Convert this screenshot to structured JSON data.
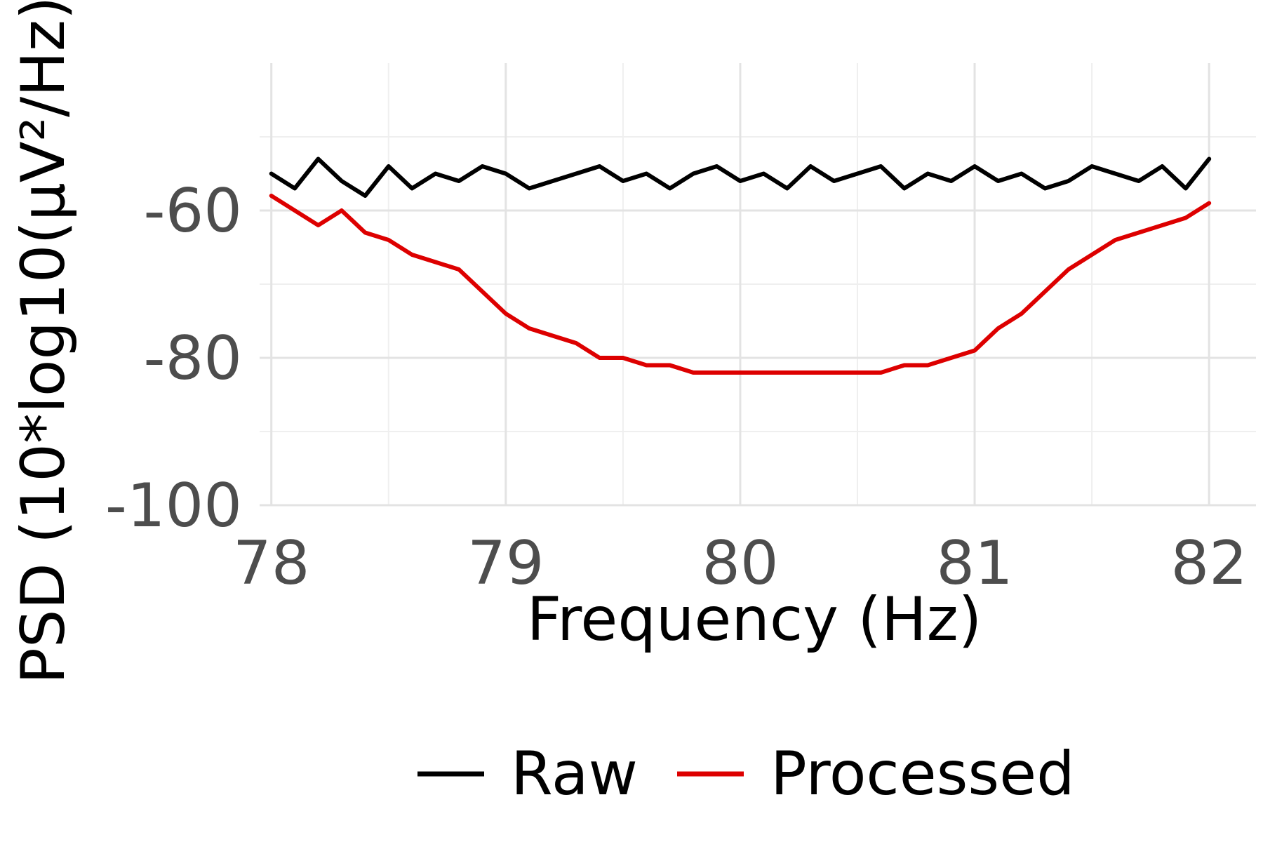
{
  "chart_data": {
    "type": "line",
    "title": "",
    "xlabel": "Frequency (Hz)",
    "ylabel": "PSD (10*log10(µV²/Hz))",
    "xlim": [
      77.95,
      82.2
    ],
    "ylim": [
      -100,
      -40
    ],
    "x_ticks": [
      "78",
      "79",
      "80",
      "81",
      "82"
    ],
    "y_ticks": [
      "-60",
      "-80",
      "-100"
    ],
    "grid": true,
    "legend_position": "bottom",
    "colors": {
      "Raw": "#000000",
      "Processed": "#dd0000"
    },
    "series": [
      {
        "name": "Raw",
        "x": [
          78.0,
          78.1,
          78.2,
          78.3,
          78.4,
          78.5,
          78.6,
          78.7,
          78.8,
          78.9,
          79.0,
          79.1,
          79.2,
          79.3,
          79.4,
          79.5,
          79.6,
          79.7,
          79.8,
          79.9,
          80.0,
          80.1,
          80.2,
          80.3,
          80.4,
          80.5,
          80.6,
          80.7,
          80.8,
          80.9,
          81.0,
          81.1,
          81.2,
          81.3,
          81.4,
          81.5,
          81.6,
          81.7,
          81.8,
          81.9,
          82.0
        ],
        "values": [
          -55,
          -57,
          -53,
          -56,
          -58,
          -54,
          -57,
          -55,
          -56,
          -54,
          -55,
          -57,
          -56,
          -55,
          -54,
          -56,
          -55,
          -57,
          -55,
          -54,
          -56,
          -55,
          -57,
          -54,
          -56,
          -55,
          -54,
          -57,
          -55,
          -56,
          -54,
          -56,
          -55,
          -57,
          -56,
          -54,
          -55,
          -56,
          -54,
          -57,
          -53
        ]
      },
      {
        "name": "Processed",
        "x": [
          78.0,
          78.1,
          78.2,
          78.3,
          78.4,
          78.5,
          78.6,
          78.7,
          78.8,
          78.9,
          79.0,
          79.1,
          79.2,
          79.3,
          79.4,
          79.5,
          79.6,
          79.7,
          79.8,
          79.9,
          80.0,
          80.1,
          80.2,
          80.3,
          80.4,
          80.5,
          80.6,
          80.7,
          80.8,
          80.9,
          81.0,
          81.1,
          81.2,
          81.3,
          81.4,
          81.5,
          81.6,
          81.7,
          81.8,
          81.9,
          82.0
        ],
        "values": [
          -58,
          -60,
          -62,
          -60,
          -63,
          -64,
          -66,
          -67,
          -68,
          -71,
          -74,
          -76,
          -77,
          -78,
          -80,
          -80,
          -81,
          -81,
          -82,
          -82,
          -82,
          -82,
          -82,
          -82,
          -82,
          -82,
          -82,
          -81,
          -81,
          -80,
          -79,
          -76,
          -74,
          -71,
          -68,
          -66,
          -64,
          -63,
          -62,
          -61,
          -59
        ]
      }
    ]
  },
  "legend": {
    "items": [
      {
        "label": "Raw",
        "color": "#000000"
      },
      {
        "label": "Processed",
        "color": "#dd0000"
      }
    ]
  }
}
